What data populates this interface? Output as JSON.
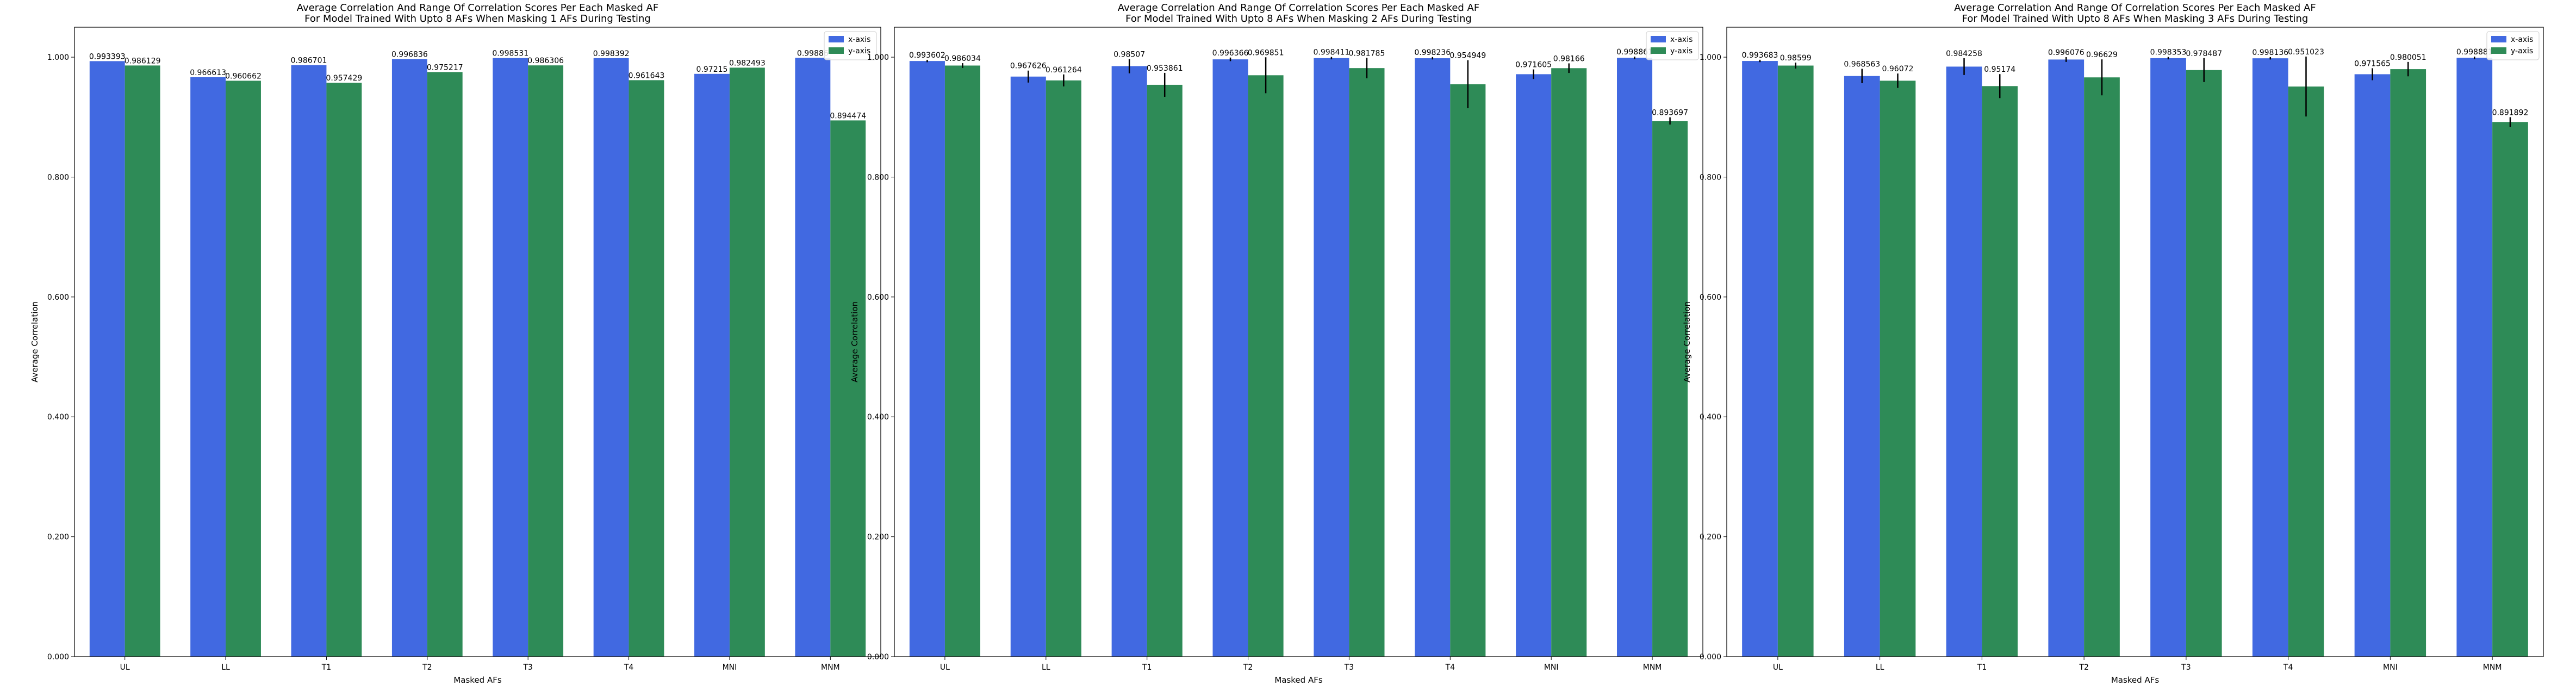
{
  "chart_data": [
    {
      "type": "bar",
      "title": "Average Correlation And Range Of Correlation Scores Per Each Masked AF\nFor Model Trained With Upto 8 AFs When Masking 1 AFs During Testing",
      "xlabel": "Masked AFs",
      "ylabel": "Average Correlation",
      "ylim": [
        0,
        1.05
      ],
      "yticks": [
        "0.000",
        "0.200",
        "0.400",
        "0.600",
        "0.800",
        "1.000"
      ],
      "legend_position": "top-right",
      "categories": [
        "UL",
        "LL",
        "T1",
        "T2",
        "T3",
        "T4",
        "MNI",
        "MNM"
      ],
      "series": [
        {
          "name": "x-axis",
          "color": "#4169e1",
          "values": [
            0.993393,
            0.966613,
            0.986701,
            0.996836,
            0.998531,
            0.998392,
            0.97215,
            0.99886
          ],
          "labels": [
            "0.993393",
            "0.966613",
            "0.986701",
            "0.996836",
            "0.998531",
            "0.998392",
            "0.97215",
            "0.99886"
          ],
          "err": [
            0,
            0,
            0,
            0,
            0,
            0,
            0,
            0
          ]
        },
        {
          "name": "y-axis",
          "color": "#2e8b57",
          "values": [
            0.986129,
            0.960662,
            0.957429,
            0.975217,
            0.986306,
            0.961643,
            0.982493,
            0.894474
          ],
          "labels": [
            "0.986129",
            "0.960662",
            "0.957429",
            "0.975217",
            "0.986306",
            "0.961643",
            "0.982493",
            "0.894474"
          ],
          "err": [
            0,
            0,
            0,
            0,
            0,
            0,
            0,
            0
          ]
        }
      ]
    },
    {
      "type": "bar",
      "title": "Average Correlation And Range Of Correlation Scores Per Each Masked AF\nFor Model Trained With Upto 8 AFs When Masking 2 AFs During Testing",
      "xlabel": "Masked AFs",
      "ylabel": "Average Correlation",
      "ylim": [
        0,
        1.05
      ],
      "yticks": [
        "0.000",
        "0.200",
        "0.400",
        "0.600",
        "0.800",
        "1.000"
      ],
      "legend_position": "top-right",
      "categories": [
        "UL",
        "LL",
        "T1",
        "T2",
        "T3",
        "T4",
        "MNI",
        "MNM"
      ],
      "series": [
        {
          "name": "x-axis",
          "color": "#4169e1",
          "values": [
            0.993602,
            0.967626,
            0.98507,
            0.996366,
            0.998411,
            0.998236,
            0.971605,
            0.998861
          ],
          "labels": [
            "0.993602",
            "0.967626",
            "0.98507",
            "0.996366",
            "0.998411",
            "0.998236",
            "0.971605",
            "0.998861"
          ],
          "err": [
            0.002,
            0.01,
            0.012,
            0.003,
            0.002,
            0.002,
            0.008,
            0.002
          ]
        },
        {
          "name": "y-axis",
          "color": "#2e8b57",
          "values": [
            0.986034,
            0.961264,
            0.953861,
            0.969851,
            0.981785,
            0.954949,
            0.98166,
            0.893697
          ],
          "labels": [
            "0.986034",
            "0.961264",
            "0.953861",
            "0.969851",
            "0.981785",
            "0.954949",
            "0.98166",
            "0.893697"
          ],
          "err": [
            0.004,
            0.01,
            0.02,
            0.03,
            0.017,
            0.04,
            0.008,
            0.006
          ]
        }
      ]
    },
    {
      "type": "bar",
      "title": "Average Correlation And Range Of Correlation Scores Per Each Masked AF\nFor Model Trained With Upto 8 AFs When Masking 3 AFs During Testing",
      "xlabel": "Masked AFs",
      "ylabel": "Average Correlation",
      "ylim": [
        0,
        1.05
      ],
      "yticks": [
        "0.000",
        "0.200",
        "0.400",
        "0.600",
        "0.800",
        "1.000"
      ],
      "legend_position": "top-right",
      "categories": [
        "UL",
        "LL",
        "T1",
        "T2",
        "T3",
        "T4",
        "MNI",
        "MNM"
      ],
      "series": [
        {
          "name": "x-axis",
          "color": "#4169e1",
          "values": [
            0.993683,
            0.968563,
            0.984258,
            0.996076,
            0.998353,
            0.998136,
            0.971565,
            0.998881
          ],
          "labels": [
            "0.993683",
            "0.968563",
            "0.984258",
            "0.996076",
            "0.998353",
            "0.998136",
            "0.971565",
            "0.998881"
          ],
          "err": [
            0.002,
            0.012,
            0.014,
            0.004,
            0.002,
            0.002,
            0.01,
            0.002
          ]
        },
        {
          "name": "y-axis",
          "color": "#2e8b57",
          "values": [
            0.98599,
            0.96072,
            0.95174,
            0.96629,
            0.978487,
            0.951023,
            0.980051,
            0.891892
          ],
          "labels": [
            "0.98599",
            "0.96072",
            "0.95174",
            "0.96629",
            "0.978487",
            "0.951023",
            "0.980051",
            "0.891892"
          ],
          "err": [
            0.005,
            0.012,
            0.02,
            0.03,
            0.02,
            0.05,
            0.012,
            0.008
          ]
        }
      ]
    }
  ]
}
